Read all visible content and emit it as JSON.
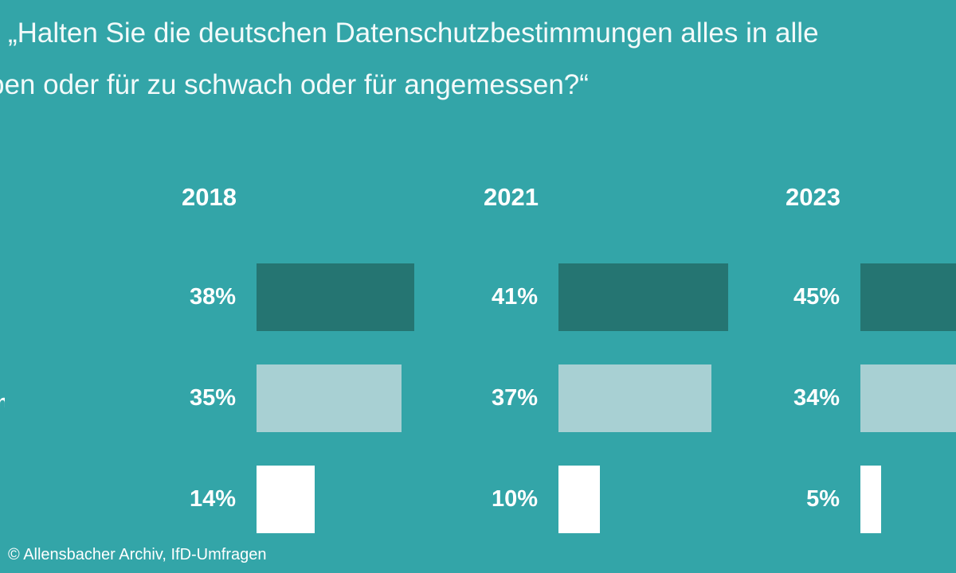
{
  "question": {
    "line1": "„Halten Sie die deutschen Datenschutzbestimmungen alles in alle",
    "line2": "ben oder für zu schwach oder für angemessen?“"
  },
  "source": "© Allensbacher Archiv, IfD-Umfragen",
  "edge_fragment": "n",
  "colors": {
    "background": "#33a5a8",
    "series_1": "#257572",
    "series_2": "#a8d0d3",
    "series_3": "#ffffff"
  },
  "chart_data": {
    "type": "bar",
    "orientation": "horizontal",
    "grouped_by": "year",
    "categories": [
      "2018",
      "2021",
      "2023"
    ],
    "series": [
      {
        "values": [
          38,
          41,
          45
        ],
        "labels": [
          "38%",
          "41%",
          "45%"
        ],
        "color": "#257572"
      },
      {
        "values": [
          35,
          37,
          34
        ],
        "labels": [
          "35%",
          "37%",
          "34%"
        ],
        "color": "#a8d0d3"
      },
      {
        "values": [
          14,
          10,
          5
        ],
        "labels": [
          "14%",
          "10%",
          "5%"
        ],
        "color": "#ffffff"
      }
    ],
    "unit": "%",
    "grid": false,
    "legend": "none"
  }
}
